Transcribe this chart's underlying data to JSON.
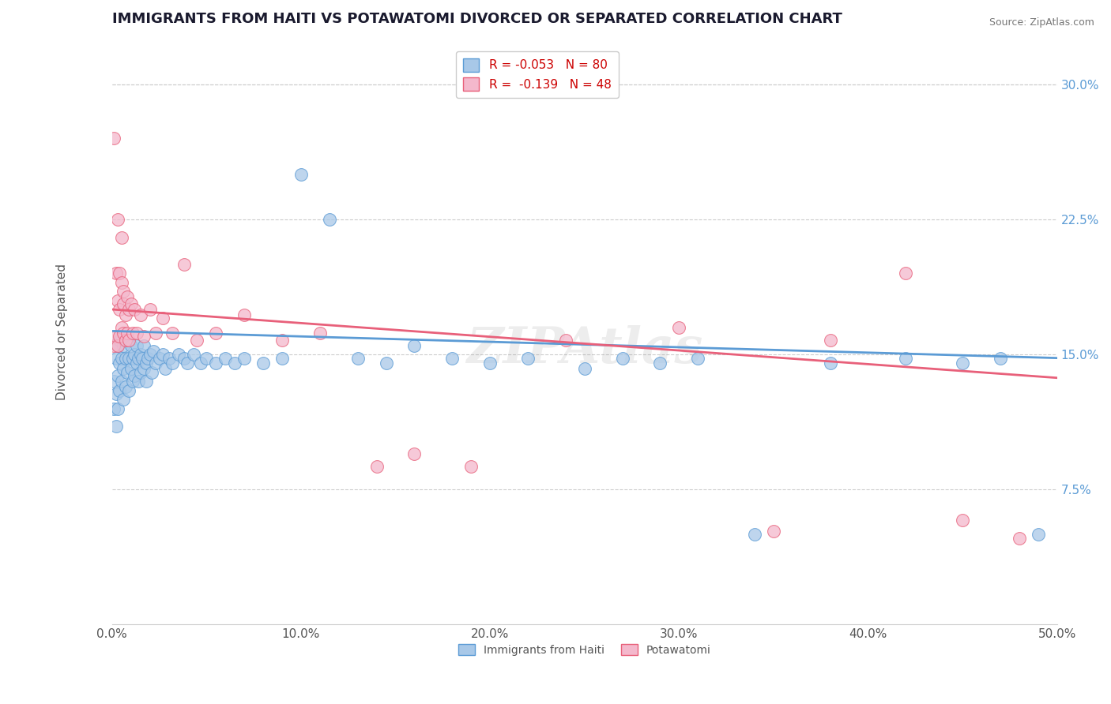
{
  "title": "IMMIGRANTS FROM HAITI VS POTAWATOMI DIVORCED OR SEPARATED CORRELATION CHART",
  "source": "Source: ZipAtlas.com",
  "ylabel": "Divorced or Separated",
  "xlim": [
    0.0,
    0.5
  ],
  "ylim": [
    0.0,
    0.325
  ],
  "xticks": [
    0.0,
    0.1,
    0.2,
    0.3,
    0.4,
    0.5
  ],
  "xtick_labels": [
    "0.0%",
    "10.0%",
    "20.0%",
    "30.0%",
    "40.0%",
    "50.0%"
  ],
  "yticks": [
    0.075,
    0.15,
    0.225,
    0.3
  ],
  "ytick_labels": [
    "7.5%",
    "15.0%",
    "22.5%",
    "30.0%"
  ],
  "haiti_color": "#a8c8e8",
  "potawatomi_color": "#f4b8cc",
  "haiti_edge_color": "#5b9bd5",
  "potawatomi_edge_color": "#e8607a",
  "haiti_line_color": "#5b9bd5",
  "potawatomi_line_color": "#e8607a",
  "haiti_R": -0.053,
  "haiti_N": 80,
  "potawatomi_R": -0.139,
  "potawatomi_N": 48,
  "legend_label_haiti": "Immigrants from Haiti",
  "legend_label_potawatomi": "Potawatomi",
  "watermark": "ZIPAtlas",
  "title_fontsize": 13,
  "axis_label_fontsize": 11,
  "tick_fontsize": 11,
  "legend_fontsize": 11,
  "haiti_line_start_y": 0.163,
  "haiti_line_end_y": 0.148,
  "potawatomi_line_start_y": 0.175,
  "potawatomi_line_end_y": 0.137,
  "haiti_points": [
    [
      0.001,
      0.12
    ],
    [
      0.001,
      0.135
    ],
    [
      0.002,
      0.128
    ],
    [
      0.002,
      0.148
    ],
    [
      0.002,
      0.11
    ],
    [
      0.003,
      0.155
    ],
    [
      0.003,
      0.138
    ],
    [
      0.003,
      0.12
    ],
    [
      0.004,
      0.145
    ],
    [
      0.004,
      0.158
    ],
    [
      0.004,
      0.13
    ],
    [
      0.005,
      0.148
    ],
    [
      0.005,
      0.135
    ],
    [
      0.005,
      0.16
    ],
    [
      0.006,
      0.142
    ],
    [
      0.006,
      0.125
    ],
    [
      0.006,
      0.155
    ],
    [
      0.007,
      0.148
    ],
    [
      0.007,
      0.132
    ],
    [
      0.008,
      0.158
    ],
    [
      0.008,
      0.14
    ],
    [
      0.009,
      0.148
    ],
    [
      0.009,
      0.13
    ],
    [
      0.01,
      0.155
    ],
    [
      0.01,
      0.142
    ],
    [
      0.011,
      0.148
    ],
    [
      0.011,
      0.135
    ],
    [
      0.012,
      0.15
    ],
    [
      0.012,
      0.138
    ],
    [
      0.013,
      0.145
    ],
    [
      0.013,
      0.155
    ],
    [
      0.014,
      0.148
    ],
    [
      0.014,
      0.135
    ],
    [
      0.015,
      0.15
    ],
    [
      0.015,
      0.14
    ],
    [
      0.016,
      0.148
    ],
    [
      0.017,
      0.142
    ],
    [
      0.017,
      0.155
    ],
    [
      0.018,
      0.145
    ],
    [
      0.018,
      0.135
    ],
    [
      0.019,
      0.148
    ],
    [
      0.02,
      0.15
    ],
    [
      0.021,
      0.14
    ],
    [
      0.022,
      0.152
    ],
    [
      0.023,
      0.145
    ],
    [
      0.025,
      0.148
    ],
    [
      0.027,
      0.15
    ],
    [
      0.028,
      0.142
    ],
    [
      0.03,
      0.148
    ],
    [
      0.032,
      0.145
    ],
    [
      0.035,
      0.15
    ],
    [
      0.038,
      0.148
    ],
    [
      0.04,
      0.145
    ],
    [
      0.043,
      0.15
    ],
    [
      0.047,
      0.145
    ],
    [
      0.05,
      0.148
    ],
    [
      0.055,
      0.145
    ],
    [
      0.06,
      0.148
    ],
    [
      0.065,
      0.145
    ],
    [
      0.07,
      0.148
    ],
    [
      0.08,
      0.145
    ],
    [
      0.09,
      0.148
    ],
    [
      0.1,
      0.25
    ],
    [
      0.115,
      0.225
    ],
    [
      0.13,
      0.148
    ],
    [
      0.145,
      0.145
    ],
    [
      0.16,
      0.155
    ],
    [
      0.18,
      0.148
    ],
    [
      0.2,
      0.145
    ],
    [
      0.22,
      0.148
    ],
    [
      0.25,
      0.142
    ],
    [
      0.27,
      0.148
    ],
    [
      0.29,
      0.145
    ],
    [
      0.31,
      0.148
    ],
    [
      0.34,
      0.05
    ],
    [
      0.38,
      0.145
    ],
    [
      0.42,
      0.148
    ],
    [
      0.45,
      0.145
    ],
    [
      0.47,
      0.148
    ],
    [
      0.49,
      0.05
    ]
  ],
  "potawatomi_points": [
    [
      0.001,
      0.155
    ],
    [
      0.001,
      0.27
    ],
    [
      0.002,
      0.195
    ],
    [
      0.002,
      0.16
    ],
    [
      0.003,
      0.18
    ],
    [
      0.003,
      0.155
    ],
    [
      0.003,
      0.225
    ],
    [
      0.004,
      0.175
    ],
    [
      0.004,
      0.16
    ],
    [
      0.004,
      0.195
    ],
    [
      0.005,
      0.19
    ],
    [
      0.005,
      0.165
    ],
    [
      0.005,
      0.215
    ],
    [
      0.006,
      0.178
    ],
    [
      0.006,
      0.162
    ],
    [
      0.006,
      0.185
    ],
    [
      0.007,
      0.172
    ],
    [
      0.007,
      0.158
    ],
    [
      0.008,
      0.182
    ],
    [
      0.008,
      0.162
    ],
    [
      0.009,
      0.175
    ],
    [
      0.009,
      0.158
    ],
    [
      0.01,
      0.178
    ],
    [
      0.011,
      0.162
    ],
    [
      0.012,
      0.175
    ],
    [
      0.013,
      0.162
    ],
    [
      0.015,
      0.172
    ],
    [
      0.017,
      0.16
    ],
    [
      0.02,
      0.175
    ],
    [
      0.023,
      0.162
    ],
    [
      0.027,
      0.17
    ],
    [
      0.032,
      0.162
    ],
    [
      0.038,
      0.2
    ],
    [
      0.045,
      0.158
    ],
    [
      0.055,
      0.162
    ],
    [
      0.07,
      0.172
    ],
    [
      0.09,
      0.158
    ],
    [
      0.11,
      0.162
    ],
    [
      0.14,
      0.088
    ],
    [
      0.16,
      0.095
    ],
    [
      0.19,
      0.088
    ],
    [
      0.24,
      0.158
    ],
    [
      0.3,
      0.165
    ],
    [
      0.35,
      0.052
    ],
    [
      0.38,
      0.158
    ],
    [
      0.42,
      0.195
    ],
    [
      0.45,
      0.058
    ],
    [
      0.48,
      0.048
    ]
  ]
}
